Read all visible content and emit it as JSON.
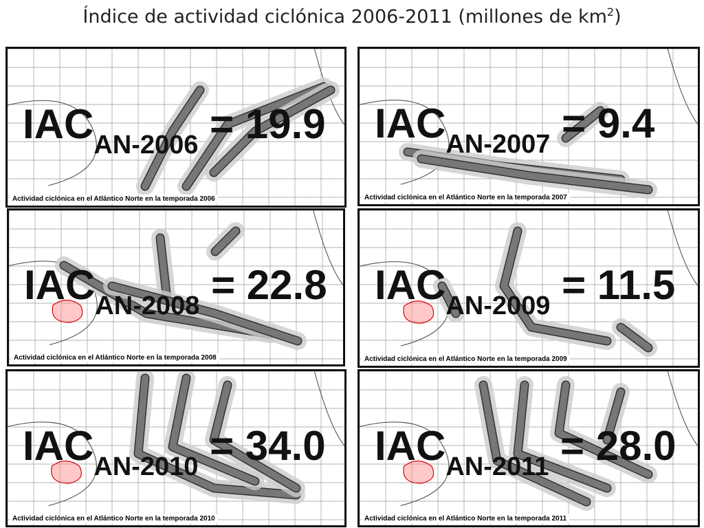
{
  "title": {
    "main": "Índice de actividad ciclónica 2006-2011 (millones de km",
    "sup": "2",
    "end": ")"
  },
  "panels": [
    {
      "label": "IAC",
      "subscript": "AN-2006",
      "value_text": "= 19.9",
      "caption": "Actividad ciclónica en el Atlántico Norte en la temporada 2006"
    },
    {
      "label": "IAC",
      "subscript": "AN-2007",
      "value_text": "= 9.4",
      "caption": "Actividad ciclónica en el Atlántico Norte en la temporada 2007"
    },
    {
      "label": "IAC",
      "subscript": "AN-2008",
      "value_text": "= 22.8",
      "caption": "Actividad ciclónica en el Atlántico Norte en la temporada 2008"
    },
    {
      "label": "IAC",
      "subscript": "AN-2009",
      "value_text": "= 11.5",
      "caption": "Actividad ciclónica en el Atlántico Norte en la temporada 2009"
    },
    {
      "label": "IAC",
      "subscript": "AN-2010",
      "value_text": "= 34.0",
      "caption": "Actividad ciclónica en el Atlántico Norte en la temporada 2010"
    },
    {
      "label": "IAC",
      "subscript": "AN-2011",
      "value_text": "= 28.0",
      "caption": "Actividad ciclónica en el Atlántico Norte en la temporada 2011"
    }
  ]
}
